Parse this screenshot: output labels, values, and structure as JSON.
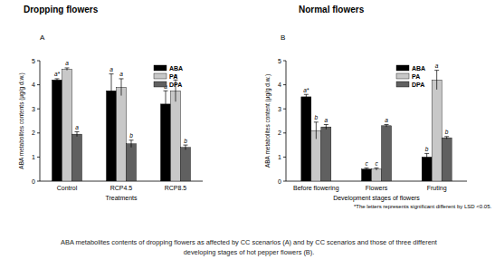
{
  "chart_data": [
    {
      "type": "bar",
      "title": "Dropping flowers",
      "subtitle": "A",
      "x_label": "Treatments",
      "y_label": "ABA metabolites contents (µg/g d.w.)",
      "categories": [
        "Control",
        "RCP4.5",
        "RCP8.5"
      ],
      "series": [
        {
          "name": "ABA",
          "color": "#000000",
          "values": [
            4.2,
            3.75,
            3.2
          ],
          "errors": [
            0.05,
            0.7,
            0.55
          ],
          "letters": [
            "a*",
            "a",
            "a"
          ]
        },
        {
          "name": "PA",
          "color": "#c8c8c8",
          "values": [
            4.65,
            3.9,
            3.75
          ],
          "errors": [
            0.05,
            0.35,
            0.45
          ],
          "letters": [
            "a",
            "a",
            "a"
          ]
        },
        {
          "name": "DPA",
          "color": "#606060",
          "values": [
            1.95,
            1.55,
            1.4
          ],
          "errors": [
            0.1,
            0.15,
            0.1
          ],
          "letters": [
            "a",
            "b",
            "b"
          ]
        }
      ],
      "ylim": [
        0,
        5
      ],
      "yticks": [
        0,
        1,
        2,
        3,
        4,
        5
      ],
      "legend": "upper right"
    },
    {
      "type": "bar",
      "title": "Normal flowers",
      "subtitle": "B",
      "x_label": "Development stages of flowers",
      "y_label": "ABA metabolites content (µg/g d.w.)",
      "categories": [
        "Before flowering",
        "Flowers",
        "Fruting"
      ],
      "series": [
        {
          "name": "ABA",
          "color": "#000000",
          "values": [
            3.5,
            0.5,
            1.0
          ],
          "errors": [
            0.1,
            0.05,
            0.15
          ],
          "letters": [
            "a*",
            "c",
            "b"
          ]
        },
        {
          "name": "PA",
          "color": "#c8c8c8",
          "values": [
            2.1,
            0.5,
            4.2
          ],
          "errors": [
            0.35,
            0.05,
            0.4
          ],
          "letters": [
            "b",
            "c",
            "a"
          ]
        },
        {
          "name": "DPA",
          "color": "#606060",
          "values": [
            2.25,
            2.3,
            1.8
          ],
          "errors": [
            0.1,
            0.05,
            0.05
          ],
          "letters": [
            "a",
            "a",
            "b"
          ]
        }
      ],
      "ylim": [
        0,
        5
      ],
      "yticks": [
        0,
        1,
        2,
        3,
        4,
        5
      ],
      "legend": "upper right",
      "annotations": [
        "*The letters represents significant different by LSD <0.05."
      ]
    }
  ],
  "caption": "ABA metabolites contents of dropping flowers as affected by CC scenarios (A) and by CC scenarios and those of three different developing stages of hot pepper flowers (B)."
}
